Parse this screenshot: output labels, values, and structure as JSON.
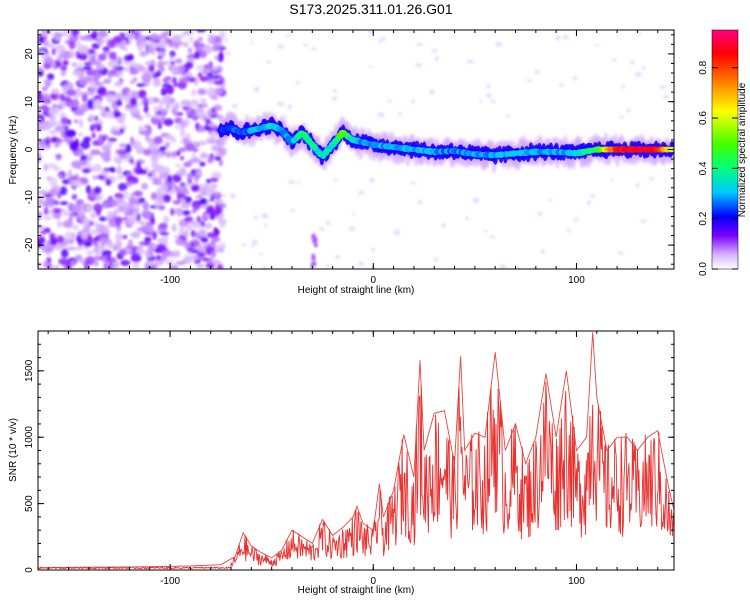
{
  "title": "S173.2025.311.01.26.G01",
  "chart_data": [
    {
      "type": "heatmap",
      "xlabel": "Height of straight line (km)",
      "ylabel": "Frequency (Hz)",
      "xlim": [
        -165,
        148
      ],
      "ylim": [
        -25,
        25
      ],
      "xticks": [
        -100,
        0,
        100
      ],
      "yticks": [
        -20,
        -10,
        0,
        10,
        20
      ],
      "colorbar": {
        "label": "Normalized spectral amplitude",
        "range": [
          0,
          0.95
        ],
        "ticks": [
          "0.0",
          "0.2",
          "0.4",
          "0.6",
          "0.8"
        ],
        "colors": [
          "#ffffff",
          "#d6b3ff",
          "#7a00ff",
          "#0000ff",
          "#00c8ff",
          "#00ff80",
          "#40ff00",
          "#ffff00",
          "#ff8000",
          "#ff0000",
          "#ff0080"
        ]
      },
      "ridge": {
        "x": [
          -75,
          -70,
          -65,
          -60,
          -55,
          -50,
          -45,
          -40,
          -35,
          -30,
          -25,
          -20,
          -15,
          -10,
          -5,
          0,
          10,
          20,
          30,
          40,
          50,
          60,
          70,
          80,
          90,
          100,
          110,
          120,
          130,
          140,
          148
        ],
        "y": [
          4,
          4.5,
          3.5,
          4,
          4.5,
          5,
          4,
          1.5,
          3.5,
          1,
          -1.5,
          1,
          3.5,
          2,
          1.5,
          1,
          0.5,
          0,
          -0.5,
          -0.3,
          -1,
          -1.2,
          -0.8,
          -0.5,
          -0.5,
          -0.8,
          0,
          0,
          0,
          0,
          0
        ],
        "amplitude": [
          0.2,
          0.25,
          0.25,
          0.3,
          0.3,
          0.35,
          0.3,
          0.3,
          0.45,
          0.4,
          0.35,
          0.35,
          0.55,
          0.35,
          0.3,
          0.3,
          0.3,
          0.3,
          0.3,
          0.28,
          0.3,
          0.3,
          0.32,
          0.3,
          0.3,
          0.35,
          0.45,
          0.9,
          0.92,
          0.88,
          0.6
        ]
      },
      "noise_region_x": [
        -165,
        -78
      ]
    },
    {
      "type": "line",
      "xlabel": "Height of straight line (km)",
      "ylabel": "SNR (10 * v/v)",
      "xlim": [
        -165,
        148
      ],
      "ylim": [
        0,
        1800
      ],
      "xticks": [
        -100,
        0,
        100
      ],
      "yticks": [
        0,
        500,
        1000,
        1500
      ],
      "series": [
        {
          "color": "#e8312f",
          "x": [
            -165,
            -150,
            -130,
            -110,
            -90,
            -75,
            -68,
            -64,
            -60,
            -55,
            -50,
            -45,
            -40,
            -35,
            -30,
            -25,
            -20,
            -15,
            -10,
            -8,
            -5,
            0,
            3,
            5,
            10,
            15,
            20,
            23,
            25,
            30,
            35,
            40,
            43,
            45,
            50,
            55,
            60,
            65,
            70,
            75,
            80,
            85,
            90,
            95,
            100,
            105,
            108,
            110,
            115,
            120,
            125,
            130,
            135,
            140,
            145,
            148
          ],
          "y": [
            15,
            20,
            22,
            25,
            30,
            40,
            100,
            280,
            180,
            130,
            90,
            150,
            300,
            250,
            200,
            380,
            260,
            320,
            400,
            480,
            350,
            300,
            650,
            400,
            600,
            1020,
            700,
            1580,
            900,
            1180,
            1200,
            800,
            1610,
            900,
            1030,
            1000,
            1640,
            900,
            1100,
            800,
            1000,
            1480,
            1000,
            1500,
            900,
            1000,
            1790,
            1300,
            900,
            1000,
            1000,
            900,
            1000,
            1050,
            650,
            450
          ]
        }
      ]
    }
  ]
}
